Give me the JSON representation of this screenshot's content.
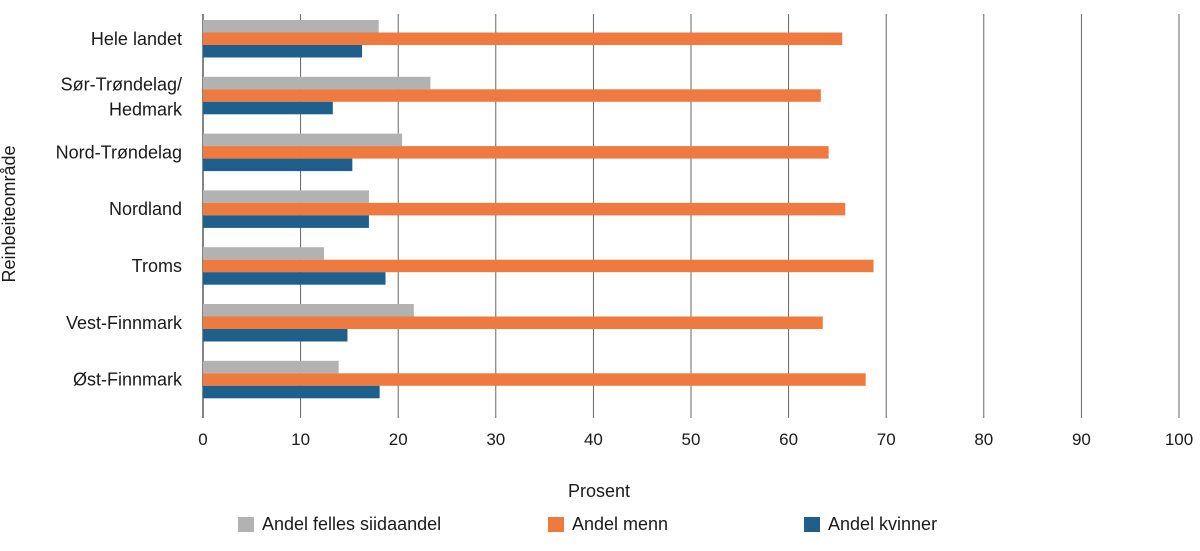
{
  "chart_data": {
    "type": "bar",
    "orientation": "horizontal",
    "categories": [
      "Hele landet",
      "Sør-Trøndelag/ Hedmark",
      "Nord-Trøndelag",
      "Nordland",
      "Troms",
      "Vest-Finnmark",
      "Øst-Finnmark"
    ],
    "series": [
      {
        "name": "Andel felles siidaandel",
        "color": "#b2b2b2",
        "values": [
          18.0,
          23.3,
          20.4,
          17.0,
          12.4,
          21.6,
          13.9
        ]
      },
      {
        "name": "Andel menn",
        "color": "#ef7a3f",
        "values": [
          65.5,
          63.3,
          64.1,
          65.8,
          68.7,
          63.5,
          67.9
        ]
      },
      {
        "name": "Andel kvinner",
        "color": "#1f5f8c",
        "values": [
          16.3,
          13.3,
          15.3,
          17.0,
          18.7,
          14.8,
          18.1
        ]
      }
    ],
    "xlabel": "Prosent",
    "ylabel": "Reinbeiteområde",
    "xlim": [
      0,
      100
    ],
    "xticks": [
      0,
      10,
      20,
      30,
      40,
      50,
      60,
      70,
      80,
      90,
      100
    ],
    "grid": "vertical",
    "legend_position": "bottom"
  }
}
